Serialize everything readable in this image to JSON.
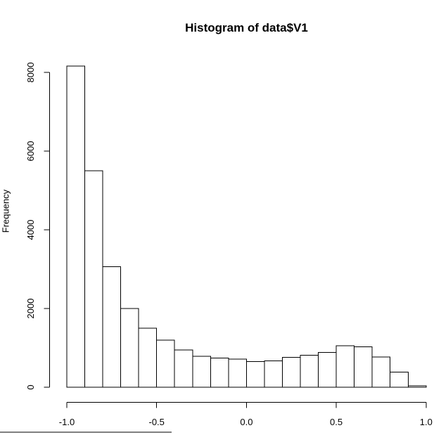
{
  "chart_data": {
    "type": "bar",
    "subtype": "histogram",
    "title": "Histogram of data$V1",
    "xlabel": "",
    "ylabel": "Frequency",
    "xlim": [
      -1.0,
      1.0
    ],
    "ylim": [
      0,
      8000
    ],
    "grid": false,
    "legend": null,
    "bin_width": 0.1,
    "bin_edges": [
      -1.0,
      -0.9,
      -0.8,
      -0.7,
      -0.6,
      -0.5,
      -0.4,
      -0.3,
      -0.2,
      -0.1,
      0.0,
      0.1,
      0.2,
      0.3,
      0.4,
      0.5,
      0.6,
      0.7,
      0.8,
      0.9,
      1.0
    ],
    "counts": [
      8160,
      5500,
      3060,
      2000,
      1500,
      1200,
      950,
      790,
      745,
      715,
      655,
      670,
      760,
      810,
      880,
      1050,
      1030,
      770,
      380,
      40
    ],
    "x_tick_values": [
      -1.0,
      -0.5,
      0.0,
      0.5,
      1.0
    ],
    "x_tick_labels": [
      "-1.0",
      "-0.5",
      "0.0",
      "0.5",
      "1.0"
    ],
    "y_tick_values": [
      0,
      2000,
      4000,
      6000,
      8000
    ],
    "y_tick_labels": [
      "0",
      "2000",
      "4000",
      "6000",
      "8000"
    ],
    "bar_fill": "#ffffff",
    "bar_stroke": "#000000",
    "axis_color": "#000000",
    "text_color": "#000000",
    "background": "#ffffff"
  },
  "artifacts": {
    "bottom_edge_color": "#7f7f7f"
  }
}
